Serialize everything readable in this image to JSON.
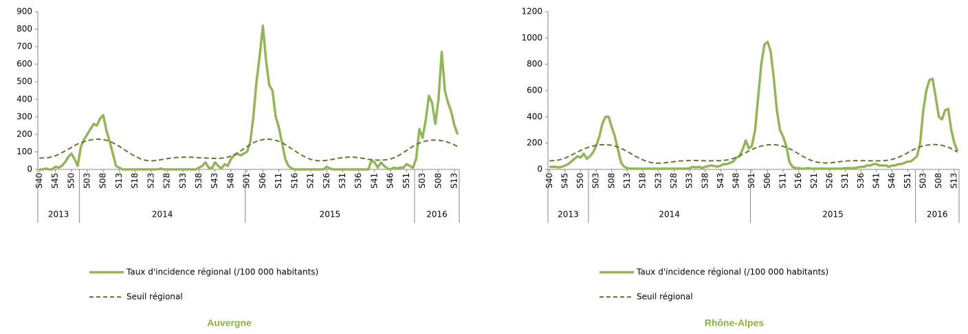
{
  "chart_data": [
    {
      "type": "line",
      "title": "Auvergne",
      "categories": [
        "S40",
        null,
        null,
        null,
        null,
        "S45",
        null,
        null,
        null,
        null,
        "S50",
        null,
        null,
        null,
        null,
        "S03",
        null,
        null,
        null,
        null,
        "S08",
        null,
        null,
        null,
        null,
        "S13",
        null,
        null,
        null,
        null,
        "S18",
        null,
        null,
        null,
        null,
        "S23",
        null,
        null,
        null,
        null,
        "S28",
        null,
        null,
        null,
        null,
        "S33",
        null,
        null,
        null,
        null,
        "S38",
        null,
        null,
        null,
        null,
        "S43",
        null,
        null,
        null,
        null,
        "S48",
        null,
        null,
        null,
        null,
        "S01",
        null,
        null,
        null,
        null,
        "S06",
        null,
        null,
        null,
        null,
        "S11",
        null,
        null,
        null,
        null,
        "S16",
        null,
        null,
        null,
        null,
        "S21",
        null,
        null,
        null,
        null,
        "S26",
        null,
        null,
        null,
        null,
        "S31",
        null,
        null,
        null,
        null,
        "S36",
        null,
        null,
        null,
        null,
        "S41",
        null,
        null,
        null,
        null,
        "S46",
        null,
        null,
        null,
        null,
        "S51",
        null,
        null,
        null,
        null,
        "S03",
        null,
        null,
        null,
        null,
        "S08",
        null,
        null,
        null,
        null,
        "S13",
        null
      ],
      "groups": [
        {
          "label": "2013",
          "span": 13
        },
        {
          "label": "2014",
          "span": 52
        },
        {
          "label": "2015",
          "span": 53
        },
        {
          "label": "2016",
          "span": 14
        }
      ],
      "series": [
        {
          "name": "Taux d'incidence régional (/100 000 habitants)",
          "color": "#92b558",
          "style": "solid",
          "values": [
            0,
            0,
            5,
            0,
            0,
            15,
            10,
            20,
            40,
            70,
            90,
            60,
            20,
            130,
            170,
            200,
            230,
            260,
            250,
            290,
            310,
            220,
            160,
            90,
            20,
            10,
            0,
            0,
            0,
            0,
            0,
            0,
            0,
            0,
            0,
            0,
            0,
            0,
            5,
            0,
            0,
            0,
            0,
            0,
            0,
            0,
            0,
            0,
            0,
            0,
            10,
            20,
            40,
            10,
            5,
            40,
            20,
            5,
            30,
            20,
            60,
            80,
            90,
            80,
            90,
            100,
            150,
            300,
            500,
            650,
            820,
            620,
            480,
            450,
            300,
            240,
            150,
            60,
            20,
            5,
            0,
            0,
            0,
            0,
            0,
            0,
            0,
            0,
            0,
            0,
            15,
            5,
            0,
            0,
            0,
            0,
            0,
            0,
            0,
            0,
            0,
            0,
            0,
            0,
            50,
            40,
            10,
            40,
            20,
            5,
            0,
            10,
            5,
            10,
            10,
            30,
            20,
            10,
            60,
            230,
            180,
            280,
            420,
            380,
            260,
            400,
            670,
            450,
            380,
            330,
            250,
            200
          ]
        },
        {
          "name": "Seuil régional",
          "color": "#5b7a2e",
          "style": "dashed",
          "values": [
            65,
            65,
            66,
            68,
            72,
            78,
            85,
            95,
            105,
            115,
            125,
            135,
            145,
            152,
            158,
            164,
            168,
            171,
            172,
            172,
            170,
            166,
            160,
            152,
            142,
            132,
            120,
            108,
            96,
            85,
            75,
            66,
            58,
            53,
            50,
            49,
            50,
            52,
            55,
            58,
            61,
            64,
            66,
            68,
            69,
            70,
            70,
            70,
            69,
            68,
            67,
            66,
            65,
            64,
            63,
            63,
            63,
            64,
            66,
            70,
            76,
            84,
            94,
            105,
            118,
            130,
            142,
            152,
            160,
            166,
            170,
            172,
            172,
            170,
            166,
            160,
            152,
            142,
            130,
            118,
            106,
            94,
            83,
            73,
            64,
            57,
            52,
            50,
            49,
            50,
            52,
            55,
            58,
            62,
            65,
            67,
            69,
            70,
            70,
            69,
            67,
            64,
            61,
            58,
            56,
            54,
            53,
            53,
            54,
            56,
            60,
            66,
            74,
            84,
            96,
            108,
            120,
            132,
            142,
            150,
            157,
            162,
            165,
            167,
            167,
            166,
            164,
            160,
            155,
            148,
            140,
            130
          ]
        }
      ],
      "ylim": [
        0,
        900
      ],
      "yticks": [
        0,
        100,
        200,
        300,
        400,
        500,
        600,
        700,
        800,
        900
      ],
      "legend": "bottom"
    },
    {
      "type": "line",
      "title": "Rhône-Alpes",
      "categories": [
        "S40",
        null,
        null,
        null,
        null,
        "S45",
        null,
        null,
        null,
        null,
        "S50",
        null,
        null,
        null,
        null,
        "S03",
        null,
        null,
        null,
        null,
        "S08",
        null,
        null,
        null,
        null,
        "S13",
        null,
        null,
        null,
        null,
        "S18",
        null,
        null,
        null,
        null,
        "S23",
        null,
        null,
        null,
        null,
        "S28",
        null,
        null,
        null,
        null,
        "S33",
        null,
        null,
        null,
        null,
        "S38",
        null,
        null,
        null,
        null,
        "S43",
        null,
        null,
        null,
        null,
        "S48",
        null,
        null,
        null,
        null,
        "S01",
        null,
        null,
        null,
        null,
        "S06",
        null,
        null,
        null,
        null,
        "S11",
        null,
        null,
        null,
        null,
        "S16",
        null,
        null,
        null,
        null,
        "S21",
        null,
        null,
        null,
        null,
        "S26",
        null,
        null,
        null,
        null,
        "S31",
        null,
        null,
        null,
        null,
        "S36",
        null,
        null,
        null,
        null,
        "S41",
        null,
        null,
        null,
        null,
        "S46",
        null,
        null,
        null,
        null,
        "S51",
        null,
        null,
        null,
        null,
        "S03",
        null,
        null,
        null,
        null,
        "S08",
        null,
        null,
        null,
        null,
        "S13",
        null
      ],
      "groups": [
        {
          "label": "2013",
          "span": 13
        },
        {
          "label": "2014",
          "span": 52
        },
        {
          "label": "2015",
          "span": 53
        },
        {
          "label": "2016",
          "span": 14
        }
      ],
      "series": [
        {
          "name": "Taux d'incidence régional (/100 000 habitants)",
          "color": "#92b558",
          "style": "solid",
          "values": [
            20,
            20,
            20,
            15,
            20,
            30,
            40,
            60,
            80,
            100,
            90,
            120,
            80,
            100,
            130,
            180,
            250,
            350,
            400,
            400,
            320,
            250,
            150,
            50,
            20,
            10,
            5,
            5,
            5,
            5,
            5,
            5,
            5,
            5,
            5,
            5,
            5,
            5,
            5,
            5,
            5,
            5,
            5,
            5,
            5,
            10,
            20,
            15,
            20,
            10,
            20,
            25,
            30,
            25,
            20,
            30,
            40,
            40,
            50,
            60,
            90,
            100,
            150,
            220,
            160,
            180,
            300,
            550,
            800,
            950,
            970,
            900,
            700,
            450,
            300,
            250,
            180,
            60,
            20,
            10,
            10,
            5,
            5,
            10,
            5,
            5,
            5,
            5,
            5,
            5,
            5,
            5,
            5,
            5,
            5,
            10,
            10,
            10,
            10,
            15,
            20,
            20,
            30,
            30,
            40,
            40,
            30,
            30,
            30,
            20,
            30,
            30,
            40,
            40,
            50,
            60,
            60,
            80,
            100,
            200,
            450,
            600,
            680,
            690,
            550,
            400,
            380,
            450,
            460,
            300,
            200,
            140
          ]
        },
        {
          "name": "Seuil régional",
          "color": "#5b7a2e",
          "style": "dashed",
          "values": [
            65,
            66,
            68,
            72,
            78,
            86,
            96,
            108,
            120,
            132,
            144,
            155,
            164,
            172,
            178,
            183,
            186,
            188,
            188,
            187,
            184,
            178,
            170,
            160,
            148,
            135,
            122,
            108,
            95,
            83,
            72,
            63,
            56,
            51,
            48,
            47,
            48,
            50,
            53,
            56,
            59,
            62,
            64,
            66,
            67,
            68,
            68,
            68,
            67,
            66,
            65,
            65,
            65,
            65,
            66,
            67,
            69,
            72,
            77,
            84,
            93,
            104,
            116,
            128,
            140,
            152,
            162,
            171,
            178,
            183,
            186,
            188,
            188,
            186,
            182,
            176,
            168,
            158,
            146,
            132,
            118,
            104,
            91,
            79,
            69,
            61,
            55,
            51,
            49,
            49,
            50,
            52,
            55,
            58,
            61,
            63,
            65,
            66,
            67,
            67,
            67,
            66,
            66,
            65,
            65,
            65,
            65,
            66,
            68,
            71,
            76,
            83,
            92,
            102,
            114,
            127,
            140,
            152,
            163,
            172,
            179,
            184,
            187,
            189,
            189,
            187,
            183,
            177,
            169,
            158,
            146,
            132
          ]
        }
      ],
      "ylim": [
        0,
        1200
      ],
      "yticks": [
        0,
        200,
        400,
        600,
        800,
        1000,
        1200
      ],
      "legend": "bottom"
    }
  ]
}
